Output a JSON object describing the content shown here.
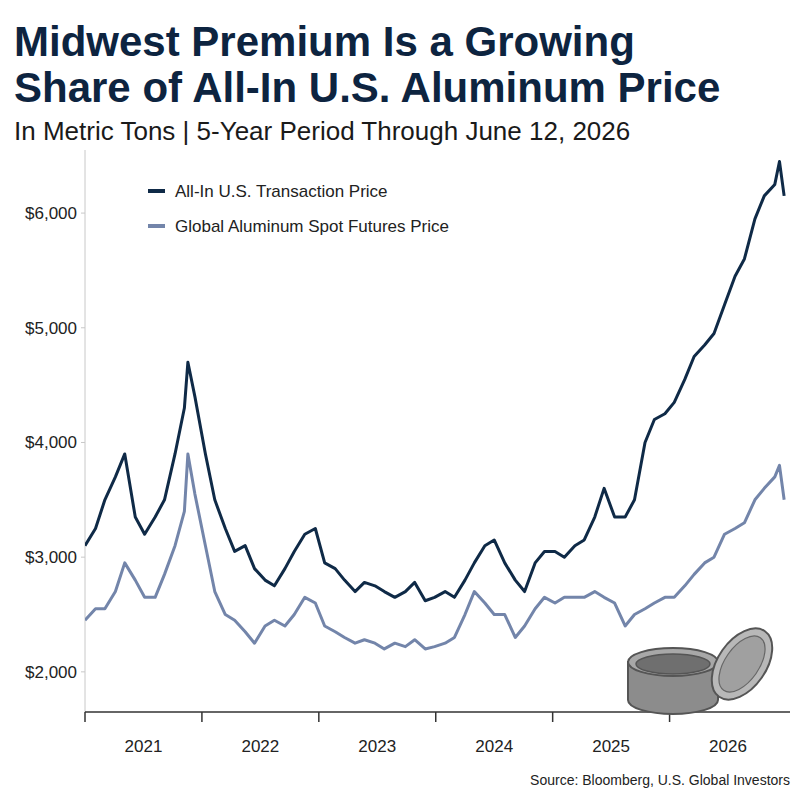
{
  "chart_data": {
    "type": "line",
    "title": "Midwest Premium Is a Growing Share of All-In U.S. Aluminum Price",
    "subtitle": "In Metric Tons | 5-Year Period Through June 12, 2026",
    "source": "Source: Bloomberg, U.S. Global Investors",
    "x": [
      2021.0,
      2021.09,
      2021.17,
      2021.26,
      2021.34,
      2021.43,
      2021.51,
      2021.6,
      2021.68,
      2021.77,
      2021.85,
      2021.88,
      2021.94,
      2022.03,
      2022.11,
      2022.2,
      2022.28,
      2022.37,
      2022.45,
      2022.54,
      2022.62,
      2022.71,
      2022.79,
      2022.88,
      2022.97,
      2023.05,
      2023.14,
      2023.22,
      2023.31,
      2023.39,
      2023.48,
      2023.56,
      2023.65,
      2023.74,
      2023.82,
      2023.91,
      2023.99,
      2024.08,
      2024.16,
      2024.25,
      2024.33,
      2024.42,
      2024.5,
      2024.59,
      2024.68,
      2024.76,
      2024.85,
      2024.93,
      2025.02,
      2025.1,
      2025.19,
      2025.27,
      2025.36,
      2025.44,
      2025.53,
      2025.62,
      2025.7,
      2025.79,
      2025.87,
      2025.96,
      2026.04,
      2026.13,
      2026.21,
      2026.3,
      2026.38,
      2026.47,
      2026.56,
      2026.64,
      2026.73,
      2026.81,
      2026.9,
      2026.94,
      2026.98
    ],
    "series": [
      {
        "name": "All-In U.S. Transaction Price",
        "color": "#0f2a47",
        "values": [
          3100,
          3250,
          3500,
          3700,
          3900,
          3350,
          3200,
          3350,
          3500,
          3900,
          4300,
          4700,
          4400,
          3900,
          3500,
          3250,
          3050,
          3100,
          2900,
          2800,
          2750,
          2900,
          3050,
          3200,
          3250,
          2950,
          2900,
          2800,
          2700,
          2780,
          2750,
          2700,
          2650,
          2700,
          2780,
          2620,
          2650,
          2700,
          2650,
          2800,
          2950,
          3100,
          3150,
          2950,
          2800,
          2700,
          2950,
          3050,
          3050,
          3000,
          3100,
          3150,
          3350,
          3600,
          3350,
          3350,
          3500,
          4000,
          4200,
          4250,
          4350,
          4550,
          4750,
          4850,
          4950,
          5200,
          5450,
          5600,
          5950,
          6150,
          6250,
          6450,
          6150
        ]
      },
      {
        "name": "Global Aluminum Spot Futures Price",
        "color": "#7385aa",
        "values": [
          2450,
          2550,
          2550,
          2700,
          2950,
          2800,
          2650,
          2650,
          2850,
          3100,
          3400,
          3900,
          3550,
          3100,
          2700,
          2500,
          2450,
          2350,
          2250,
          2400,
          2450,
          2400,
          2500,
          2650,
          2600,
          2400,
          2350,
          2300,
          2250,
          2280,
          2250,
          2200,
          2250,
          2220,
          2280,
          2200,
          2220,
          2250,
          2300,
          2500,
          2700,
          2600,
          2500,
          2500,
          2300,
          2400,
          2550,
          2650,
          2600,
          2650,
          2650,
          2650,
          2700,
          2650,
          2600,
          2400,
          2500,
          2550,
          2600,
          2650,
          2650,
          2750,
          2850,
          2950,
          3000,
          3200,
          3250,
          3300,
          3500,
          3600,
          3700,
          3800,
          3500
        ]
      }
    ],
    "xlim": [
      2021,
      2027.03
    ],
    "xticks": [
      {
        "value": 2021.5,
        "label": "2021"
      },
      {
        "value": 2022.5,
        "label": "2022"
      },
      {
        "value": 2023.5,
        "label": "2023"
      },
      {
        "value": 2024.5,
        "label": "2024"
      },
      {
        "value": 2025.5,
        "label": "2025"
      },
      {
        "value": 2026.5,
        "label": "2026"
      }
    ],
    "ylim": [
      1650,
      6550
    ],
    "yticks": [
      {
        "value": 2000,
        "label": "$2,000"
      },
      {
        "value": 3000,
        "label": "$3,000"
      },
      {
        "value": 4000,
        "label": "$4,000"
      },
      {
        "value": 5000,
        "label": "$5,000"
      },
      {
        "value": 6000,
        "label": "$6,000"
      }
    ],
    "grid": false,
    "legend": "top-left"
  }
}
